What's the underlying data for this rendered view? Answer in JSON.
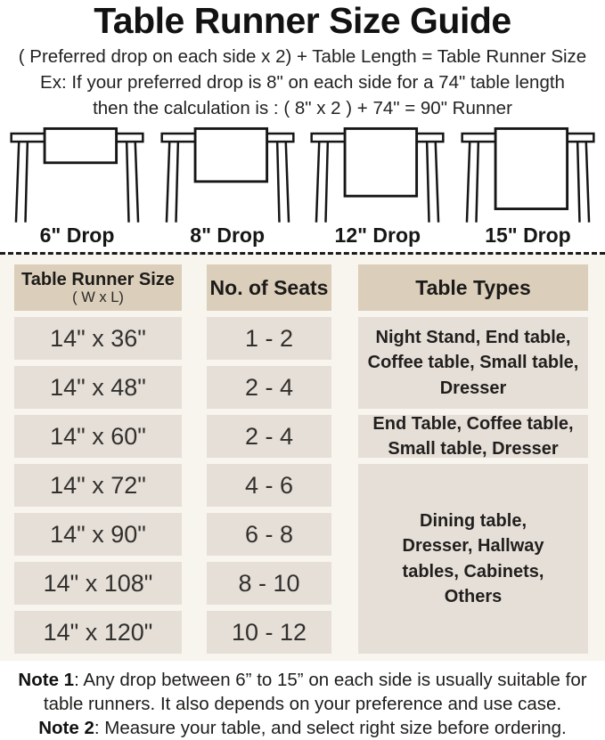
{
  "title": "Table Runner Size Guide",
  "formula": "( Preferred drop on each side x 2) + Table Length = Table Runner Size",
  "example": {
    "line1": "Ex: If your preferred drop is 8\" on each side for a 74\" table length",
    "line2": "then the calculation is : ( 8\" x 2 ) + 74\" = 90\" Runner"
  },
  "illustrations": [
    {
      "label": "6\" Drop",
      "drop_inches": 6,
      "runner_height": 40
    },
    {
      "label": "8\" Drop",
      "drop_inches": 8,
      "runner_height": 62
    },
    {
      "label": "12\" Drop",
      "drop_inches": 12,
      "runner_height": 79
    },
    {
      "label": "15\" Drop",
      "drop_inches": 15,
      "runner_height": 94
    }
  ],
  "size_table": {
    "headers": {
      "col1_line1": "Table Runner Size",
      "col1_line2": "( W x L)",
      "col2": "No. of Seats",
      "col3": "Table Types"
    },
    "rows": [
      {
        "size": "14\" x 36\"",
        "seats": "1 - 2"
      },
      {
        "size": "14\" x 48\"",
        "seats": "2 - 4"
      },
      {
        "size": "14\" x 60\"",
        "seats": "2 - 4"
      },
      {
        "size": "14\" x 72\"",
        "seats": "4 - 6"
      },
      {
        "size": "14\" x 90\"",
        "seats": "6 - 8"
      },
      {
        "size": "14\" x 108\"",
        "seats": "8 - 10"
      },
      {
        "size": "14\" x 120\"",
        "seats": "10 - 12"
      }
    ],
    "type_groups": [
      {
        "text": "Night Stand, End table, Coffee table, Small table, Dresser",
        "rows_spanned": 2
      },
      {
        "text": "End Table, Coffee table, Small table, Dresser",
        "rows_spanned": 1
      },
      {
        "text": "Dining table, Dresser, Hallway tables, Cabinets, Others",
        "rows_spanned": 4
      }
    ]
  },
  "notes": [
    {
      "label": "Note 1",
      "text": ": Any drop between 6” to 15” on each side is usually suitable for table runners. It also depends on your preference and use case."
    },
    {
      "label": "Note 2",
      "text": ": Measure your table, and select right size before ordering."
    }
  ],
  "colors": {
    "header_cell_bg": "#dbceba",
    "data_cell_bg": "#e6dfd8",
    "table_section_bg": "#f8f4ee",
    "page_bg": "#ffffff",
    "ink": "#1d1c1a"
  }
}
